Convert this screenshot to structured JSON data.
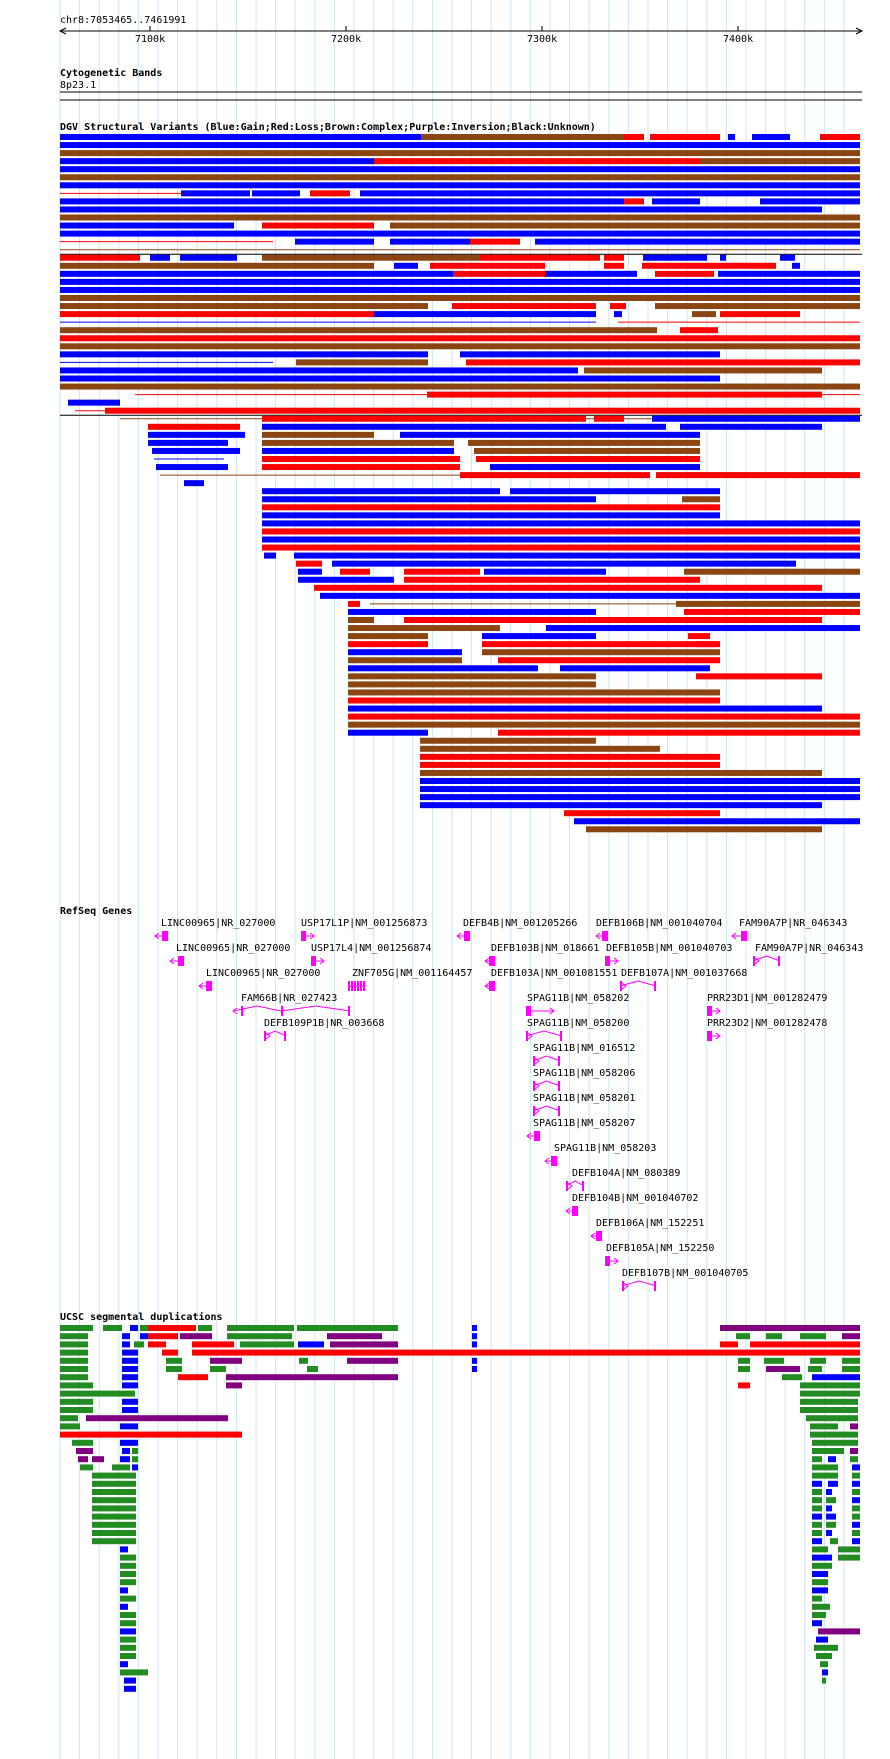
{
  "ruler": {
    "position_label": "chr8:7053465..7461991",
    "ticks": [
      "7100k",
      "7200k",
      "7300k",
      "7400k"
    ]
  },
  "cytoband": {
    "title": "Cytogenetic Bands",
    "band": "8p23.1"
  },
  "dgv": {
    "title": "DGV Structural Variants (Blue:Gain;Red:Loss;Brown:Complex;Purple:Inversion;Black:Unknown)",
    "colors": {
      "gain": "#0000ff",
      "loss": "#ff0000",
      "complex": "#8b4513",
      "inversion": "#800080",
      "unknown": "#000000"
    }
  },
  "refseq": {
    "title": "RefSeq Genes",
    "gene_color": "#ff00ff",
    "genes": [
      "LINC00965|NR_027000",
      "USP17L1P|NM_001256873",
      "DEFB4B|NM_001205266",
      "DEFB106B|NM_001040704",
      "FAM90A7P|NR_046343",
      "LINC00965|NR_027000",
      "USP17L4|NM_001256874",
      "DEFB103B|NM_018661",
      "DEFB105B|NM_001040703",
      "FAM90A7P|NR_046343",
      "LINC00965|NR_027000",
      "ZNF705G|NM_001164457",
      "DEFB103A|NM_001081551",
      "DEFB107A|NM_001037668",
      "FAM66B|NR_027423",
      "SPAG11B|NM_058202",
      "PRR23D1|NM_001282479",
      "SPAG11B|NM_058200",
      "DEFB109P1B|NR_003668",
      "PRR23D2|NM_001282478",
      "SPAG11B|NM_016512",
      "SPAG11B|NM_058206",
      "SPAG11B|NM_058201",
      "SPAG11B|NM_058207",
      "SPAG11B|NM_058203",
      "DEFB104A|NM_080389",
      "DEFB104B|NM_001040702",
      "DEFB106A|NM_152251",
      "DEFB105A|NM_152250",
      "DEFB107B|NM_001040705"
    ]
  },
  "segdup": {
    "title": "UCSC segmental duplications",
    "colors": {
      "green": "#228b22",
      "blue": "#0000ff",
      "red": "#ff0000",
      "purple": "#800080"
    }
  }
}
